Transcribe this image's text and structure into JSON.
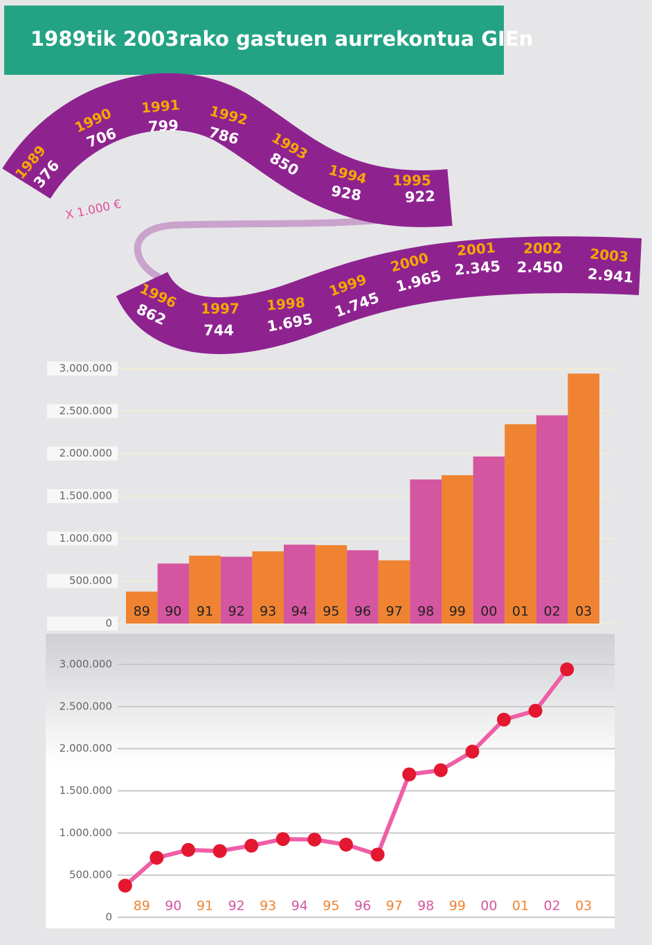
{
  "header": {
    "title": "1989tik 2003rako gastuen aurrekontua GIEn"
  },
  "ribbon": {
    "unit": "X 1.000 €",
    "items": [
      {
        "year": "1989",
        "value": "376"
      },
      {
        "year": "1990",
        "value": "706"
      },
      {
        "year": "1991",
        "value": "799"
      },
      {
        "year": "1992",
        "value": "786"
      },
      {
        "year": "1993",
        "value": "850"
      },
      {
        "year": "1994",
        "value": "928"
      },
      {
        "year": "1995",
        "value": "922"
      },
      {
        "year": "1996",
        "value": "862"
      },
      {
        "year": "1997",
        "value": "744"
      },
      {
        "year": "1998",
        "value": "1.695"
      },
      {
        "year": "1999",
        "value": "1.745"
      },
      {
        "year": "2000",
        "value": "1.965"
      },
      {
        "year": "2001",
        "value": "2.345"
      },
      {
        "year": "2002",
        "value": "2.450"
      },
      {
        "year": "2003",
        "value": "2.941"
      }
    ]
  },
  "chart_data": [
    {
      "type": "bar",
      "categories": [
        "89",
        "90",
        "91",
        "92",
        "93",
        "94",
        "95",
        "96",
        "97",
        "98",
        "99",
        "00",
        "01",
        "02",
        "03"
      ],
      "values": [
        376000,
        706000,
        799000,
        786000,
        850000,
        928000,
        922000,
        862000,
        744000,
        1695000,
        1745000,
        1965000,
        2345000,
        2450000,
        2941000
      ],
      "colors": [
        "#ef8331",
        "#d455a0",
        "#ef8331",
        "#d455a0",
        "#ef8331",
        "#d455a0",
        "#ef8331",
        "#d455a0",
        "#ef8331",
        "#d455a0",
        "#ef8331",
        "#d455a0",
        "#ef8331",
        "#d455a0",
        "#ef8331"
      ],
      "ylim": [
        0,
        3000000
      ],
      "yticks": [
        0,
        {
          "value": 500000,
          "label": "500.000"
        },
        {
          "value": 1000000,
          "label": "1.000.000"
        },
        {
          "value": 1500000,
          "label": "1.500.000"
        },
        {
          "value": 2000000,
          "label": "2.000.000"
        },
        {
          "value": 2500000,
          "label": "2.500.000"
        },
        {
          "value": 3000000,
          "label": "3.000.000"
        }
      ],
      "grid": true
    },
    {
      "type": "line",
      "categories": [
        "89",
        "90",
        "91",
        "92",
        "93",
        "94",
        "95",
        "96",
        "97",
        "98",
        "99",
        "00",
        "01",
        "02",
        "03"
      ],
      "values": [
        376000,
        706000,
        799000,
        786000,
        850000,
        928000,
        922000,
        862000,
        744000,
        1695000,
        1745000,
        1965000,
        2345000,
        2450000,
        2941000
      ],
      "color": "#ef5ea6",
      "marker_color": "#e3172f",
      "category_colors": [
        "#ef8331",
        "#d455a0",
        "#ef8331",
        "#d455a0",
        "#ef8331",
        "#d455a0",
        "#ef8331",
        "#d455a0",
        "#ef8331",
        "#d455a0",
        "#ef8331",
        "#d455a0",
        "#ef8331",
        "#d455a0",
        "#ef8331"
      ],
      "ylim": [
        0,
        3000000
      ],
      "yticks": [
        0,
        {
          "value": 500000,
          "label": "500.000"
        },
        {
          "value": 1000000,
          "label": "1.000.000"
        },
        {
          "value": 1500000,
          "label": "1.500.000"
        },
        {
          "value": 2000000,
          "label": "2.000.000"
        },
        {
          "value": 2500000,
          "label": "2.500.000"
        },
        {
          "value": 3000000,
          "label": "3.000.000"
        }
      ],
      "grid": true
    }
  ]
}
